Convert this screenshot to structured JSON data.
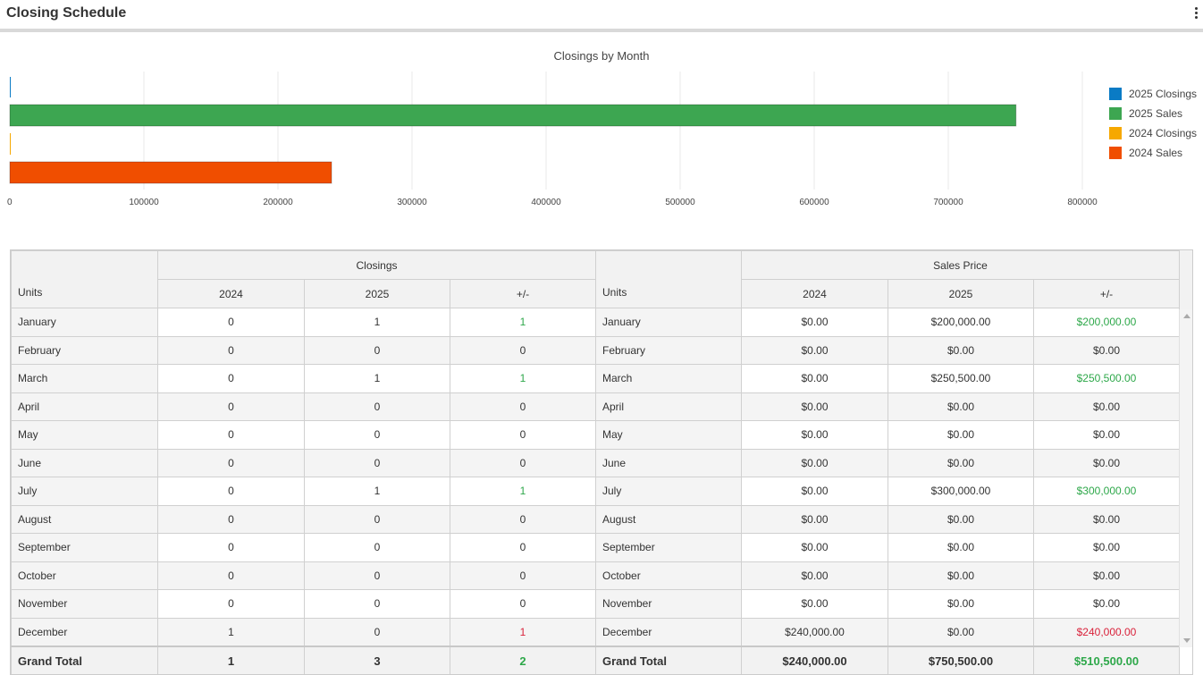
{
  "header": {
    "title": "Closing Schedule",
    "menu_icon": "more-vertical-icon"
  },
  "chart_data": {
    "type": "bar",
    "orientation": "horizontal",
    "title": "Closings by Month",
    "series": [
      {
        "name": "2025 Closings",
        "value": 3,
        "color": "#0a7bc5"
      },
      {
        "name": "2025 Sales",
        "value": 750500,
        "color": "#3da651"
      },
      {
        "name": "2024 Closings",
        "value": 1,
        "color": "#f6a800"
      },
      {
        "name": "2024 Sales",
        "value": 240000,
        "color": "#f04e00"
      }
    ],
    "xlim": [
      0,
      800000
    ],
    "ticks": [
      "0",
      "100000",
      "200000",
      "300000",
      "400000",
      "500000",
      "600000",
      "700000",
      "800000"
    ],
    "legend_position": "right",
    "grid": true
  },
  "table": {
    "closings_header": "Closings",
    "sales_header": "Sales Price",
    "units_label": "Units",
    "col_2024": "2024",
    "col_2025": "2025",
    "col_diff": "+/-",
    "rows": [
      {
        "month": "January",
        "c24": "0",
        "c25": "1",
        "cd": "1",
        "s24": "$0.00",
        "s25": "$200,000.00",
        "sd": "$200,000.00"
      },
      {
        "month": "February",
        "c24": "0",
        "c25": "0",
        "cd": "0",
        "s24": "$0.00",
        "s25": "$0.00",
        "sd": "$0.00"
      },
      {
        "month": "March",
        "c24": "0",
        "c25": "1",
        "cd": "1",
        "s24": "$0.00",
        "s25": "$250,500.00",
        "sd": "$250,500.00"
      },
      {
        "month": "April",
        "c24": "0",
        "c25": "0",
        "cd": "0",
        "s24": "$0.00",
        "s25": "$0.00",
        "sd": "$0.00"
      },
      {
        "month": "May",
        "c24": "0",
        "c25": "0",
        "cd": "0",
        "s24": "$0.00",
        "s25": "$0.00",
        "sd": "$0.00"
      },
      {
        "month": "June",
        "c24": "0",
        "c25": "0",
        "cd": "0",
        "s24": "$0.00",
        "s25": "$0.00",
        "sd": "$0.00"
      },
      {
        "month": "July",
        "c24": "0",
        "c25": "1",
        "cd": "1",
        "s24": "$0.00",
        "s25": "$300,000.00",
        "sd": "$300,000.00"
      },
      {
        "month": "August",
        "c24": "0",
        "c25": "0",
        "cd": "0",
        "s24": "$0.00",
        "s25": "$0.00",
        "sd": "$0.00"
      },
      {
        "month": "September",
        "c24": "0",
        "c25": "0",
        "cd": "0",
        "s24": "$0.00",
        "s25": "$0.00",
        "sd": "$0.00"
      },
      {
        "month": "October",
        "c24": "0",
        "c25": "0",
        "cd": "0",
        "s24": "$0.00",
        "s25": "$0.00",
        "sd": "$0.00"
      },
      {
        "month": "November",
        "c24": "0",
        "c25": "0",
        "cd": "0",
        "s24": "$0.00",
        "s25": "$0.00",
        "sd": "$0.00"
      },
      {
        "month": "December",
        "c24": "1",
        "c25": "0",
        "cd": "1",
        "s24": "$240,000.00",
        "s25": "$0.00",
        "sd": "$240,000.00"
      }
    ],
    "diff_status": [
      "pos",
      "zero",
      "pos",
      "zero",
      "zero",
      "zero",
      "pos",
      "zero",
      "zero",
      "zero",
      "zero",
      "neg"
    ],
    "total": {
      "label": "Grand Total",
      "c24": "1",
      "c25": "3",
      "cd": "2",
      "s24": "$240,000.00",
      "s25": "$750,500.00",
      "sd": "$510,500.00"
    },
    "colors": {
      "positive": "#2ea84a",
      "negative": "#d9223b"
    }
  }
}
